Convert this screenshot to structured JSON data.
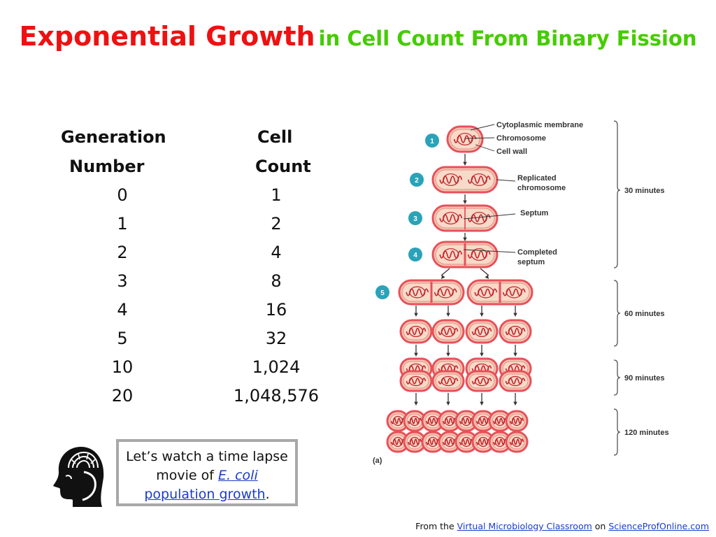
{
  "title": {
    "main": "Exponential Growth",
    "sub": "in Cell Count From Binary Fission"
  },
  "table": {
    "col1_header_line1": "Generation",
    "col1_header_line2": "Number",
    "col2_header_line1": "Cell",
    "col2_header_line2": "Count",
    "rows": [
      {
        "generation": "0",
        "count": "1"
      },
      {
        "generation": "1",
        "count": "2"
      },
      {
        "generation": "2",
        "count": "4"
      },
      {
        "generation": "3",
        "count": "8"
      },
      {
        "generation": "4",
        "count": "16"
      },
      {
        "generation": "5",
        "count": "32"
      },
      {
        "generation": "10",
        "count": "1,024"
      },
      {
        "generation": "20",
        "count": "1,048,576"
      }
    ]
  },
  "diagram": {
    "labels": {
      "cytoplasmic_membrane": "Cytoplasmic membrane",
      "chromosome": "Chromosome",
      "cell_wall": "Cell wall",
      "replicated_line1": "Replicated",
      "replicated_line2": "chromosome",
      "septum": "Septum",
      "completed_line1": "Completed",
      "completed_line2": "septum",
      "panel": "(a)"
    },
    "steps": [
      "1",
      "2",
      "3",
      "4",
      "5"
    ],
    "time_labels": [
      "30 minutes",
      "60 minutes",
      "90 minutes",
      "120 minutes"
    ]
  },
  "note": {
    "text_before": "Let’s watch a time lapse movie of ",
    "link1": "E. coli",
    "link2": "population growth",
    "text_after": "."
  },
  "footer": {
    "prefix": "From the ",
    "link1": "Virtual Microbiology Classroom",
    "middle": " on ",
    "link2": "ScienceProfOnline.com"
  },
  "colors": {
    "title_red": "#ee1111",
    "title_green": "#44cc00",
    "link_blue": "#1a3acc",
    "step_teal": "#2aa3b8",
    "cell_red": "#e8505a"
  }
}
